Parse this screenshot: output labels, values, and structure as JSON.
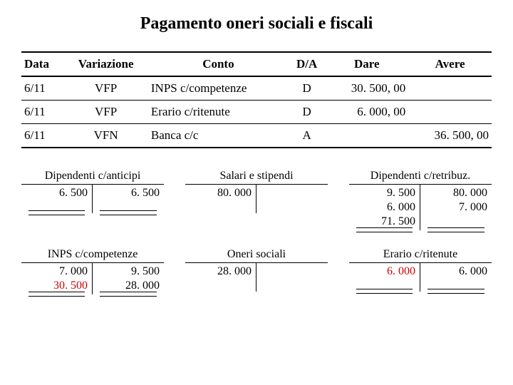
{
  "title": "Pagamento oneri sociali e fiscali",
  "table": {
    "headers": {
      "data": "Data",
      "variazione": "Variazione",
      "conto": "Conto",
      "da": "D/A",
      "dare": "Dare",
      "avere": "Avere"
    },
    "rows": [
      {
        "data": "6/11",
        "variazione": "VFP",
        "conto": "INPS c/competenze",
        "da": "D",
        "dare": "30. 500, 00",
        "avere": ""
      },
      {
        "data": "6/11",
        "variazione": "VFP",
        "conto": "Erario c/ritenute",
        "da": "D",
        "dare": "6. 000, 00",
        "avere": ""
      },
      {
        "data": "6/11",
        "variazione": "VFN",
        "conto": "Banca c/c",
        "da": "A",
        "dare": "",
        "avere": "36. 500, 00"
      }
    ]
  },
  "taccounts_row1": {
    "a": {
      "title": "Dipendenti c/anticipi",
      "left": [
        "6. 500"
      ],
      "right": [
        "6. 500"
      ],
      "closed_left": true,
      "closed_right": true
    },
    "b": {
      "title": "Salari e stipendi",
      "left": [
        "80. 000"
      ],
      "right": [],
      "closed_left": false,
      "closed_right": false
    },
    "c": {
      "title": "Dipendenti c/retribuz.",
      "left": [
        "9. 500",
        "6. 000",
        "71. 500"
      ],
      "right": [
        "80. 000",
        "7. 000"
      ],
      "closed_left": true,
      "closed_right": true
    }
  },
  "taccounts_row2": {
    "a": {
      "title": "INPS c/competenze",
      "left": [
        "7. 000",
        "30. 500"
      ],
      "right": [
        "9. 500",
        "28. 000"
      ],
      "left_highlight_idx": 1,
      "closed_left": true,
      "closed_right": true
    },
    "b": {
      "title": "Oneri sociali",
      "left": [
        "28. 000"
      ],
      "right": [],
      "closed_left": false,
      "closed_right": false
    },
    "c": {
      "title": "Erario c/ritenute",
      "left": [
        "6. 000"
      ],
      "right": [
        "6. 000"
      ],
      "left_highlight_idx": 0,
      "closed_left": true,
      "closed_right": true
    }
  }
}
